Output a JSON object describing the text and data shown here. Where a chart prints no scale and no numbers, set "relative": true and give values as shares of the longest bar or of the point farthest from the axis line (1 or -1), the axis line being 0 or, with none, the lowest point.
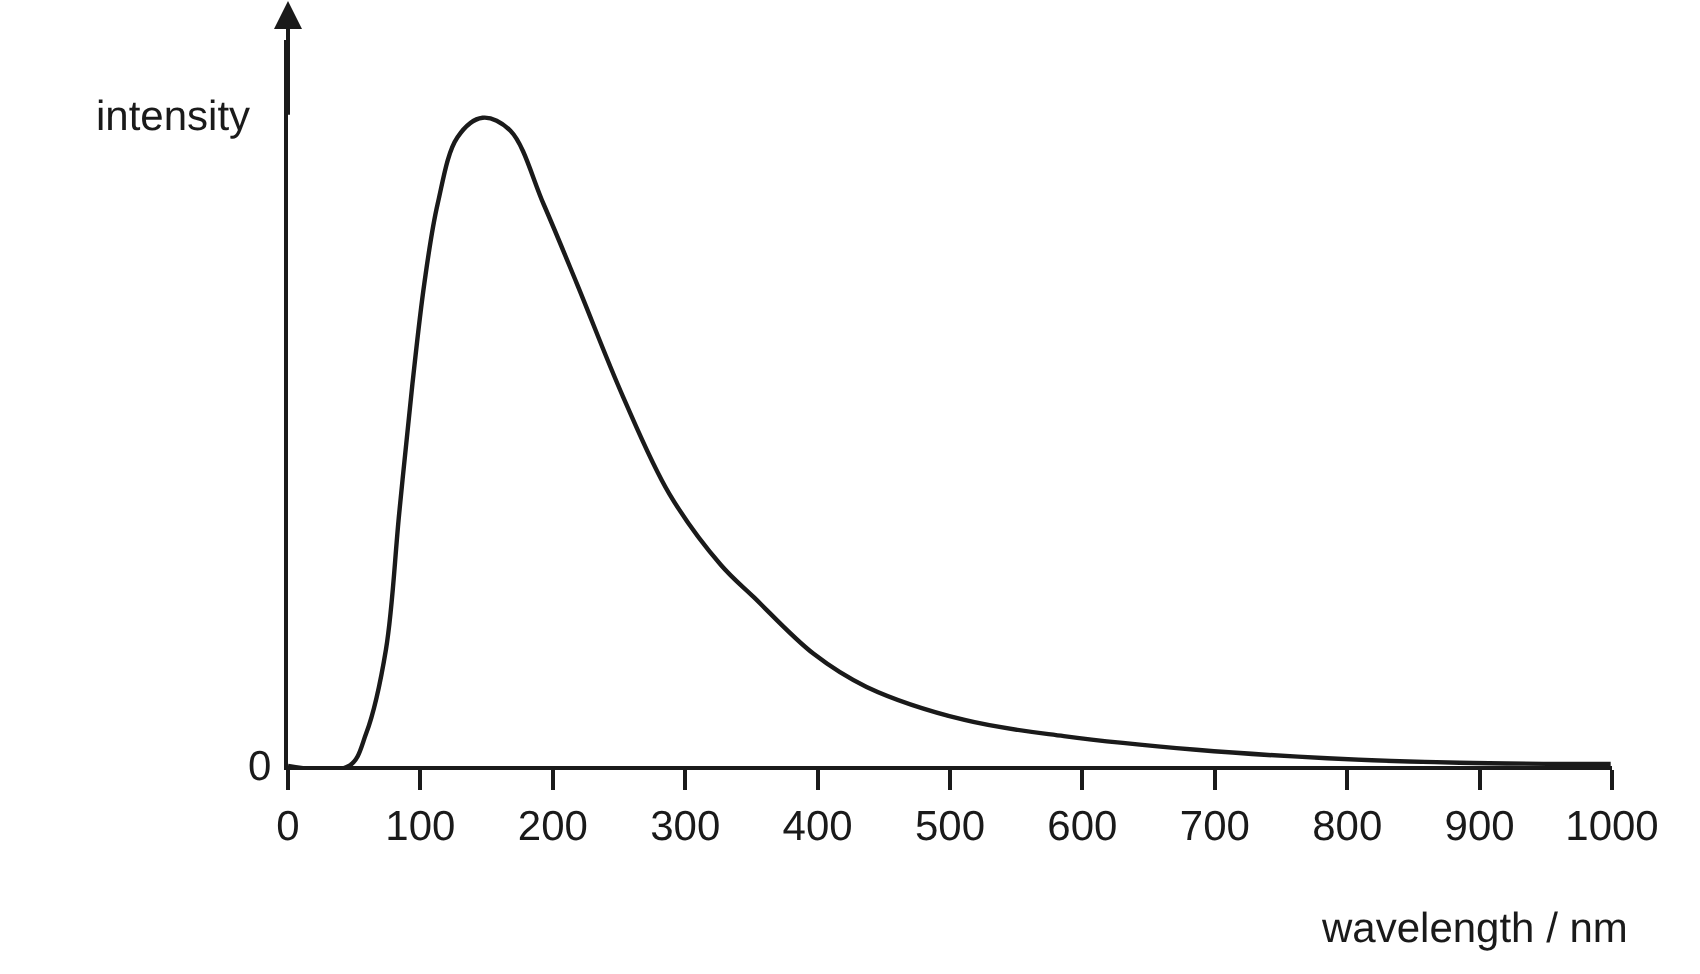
{
  "chart_data": {
    "type": "line",
    "relative": true,
    "xlabel": "wavelength / nm",
    "ylabel": "intensity",
    "x": [
      0,
      46,
      59,
      74,
      84,
      94,
      103,
      113,
      128,
      147,
      168,
      193,
      218,
      253,
      288,
      327,
      352,
      397,
      437,
      511,
      586,
      686,
      785,
      885,
      999
    ],
    "series": [
      {
        "color": "#1a1a1a",
        "values": [
          0,
          0,
          0.05,
          0.18,
          0.39,
          0.59,
          0.745,
          0.867,
          0.97,
          1.0,
          0.98,
          0.867,
          0.745,
          0.57,
          0.42,
          0.31,
          0.26,
          0.173,
          0.122,
          0.071,
          0.046,
          0.025,
          0.012,
          0.005,
          0.003
        ]
      }
    ],
    "xlim": [
      0,
      1000
    ],
    "xticks": [
      0,
      100,
      200,
      300,
      400,
      500,
      600,
      700,
      800,
      900,
      1000
    ],
    "annotations": [
      "0"
    ],
    "marker": "none",
    "line_style": "solid"
  }
}
